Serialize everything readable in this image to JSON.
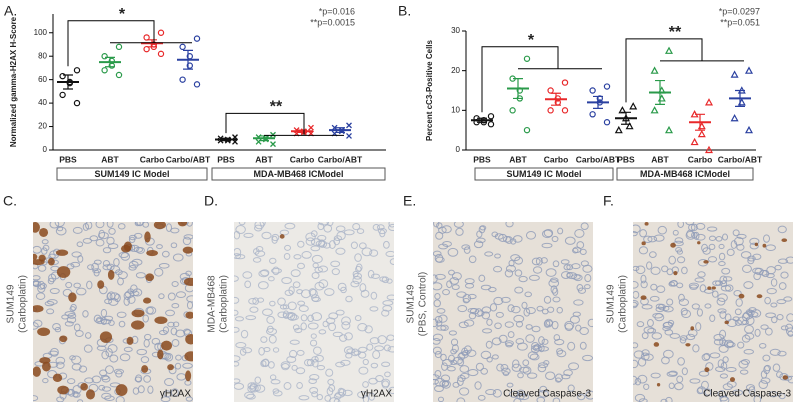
{
  "chart_data": [
    {
      "type": "dot",
      "panel_label": "A.",
      "y_label": "Normalized gamma-H2AX H-Score",
      "ylim": [
        0,
        116
      ],
      "yticks": [
        0,
        20,
        40,
        60,
        80,
        100
      ],
      "colors": [
        "#111111",
        "#2a9a4a",
        "#e8282a",
        "#2a40a0"
      ],
      "significance": [
        "*",
        "**"
      ],
      "p_values": [
        "*p=0.016",
        "**p=0.0015"
      ],
      "groups": [
        {
          "label": "SUM149 IC Model",
          "marker": "circle",
          "categories": [
            "PBS",
            "ABT",
            "Carbo",
            "Carbo/ABT"
          ],
          "points": [
            [
              68,
              63,
              58,
              57,
              47,
              40
            ],
            [
              88,
              80,
              76,
              72,
              68,
              64
            ],
            [
              100,
              96,
              90,
              88,
              86,
              82
            ],
            [
              95,
              88,
              80,
              72,
              60,
              56
            ]
          ],
          "means": [
            58,
            75,
            91,
            77
          ],
          "errors": [
            6,
            4,
            3,
            8
          ]
        },
        {
          "label": "MDA-MB468 ICModel",
          "marker": "x",
          "categories": [
            "PBS",
            "ABT",
            "Carbo",
            "Carbo/ABT"
          ],
          "points": [
            [
              11,
              10,
              9,
              8,
              8,
              7
            ],
            [
              13,
              11,
              10,
              9,
              7,
              5
            ],
            [
              19,
              17,
              16,
              15,
              14,
              14
            ],
            [
              21,
              19,
              17,
              16,
              14,
              12
            ]
          ],
          "means": [
            9,
            10,
            16,
            17
          ],
          "errors": [
            1,
            2,
            1,
            2
          ]
        }
      ]
    },
    {
      "type": "dot",
      "panel_label": "B.",
      "y_label": "Percent cC3-Positive Cells",
      "ylim": [
        0,
        30
      ],
      "yticks": [
        0,
        10,
        20,
        30
      ],
      "colors": [
        "#111111",
        "#2a9a4a",
        "#e8282a",
        "#2a40a0"
      ],
      "significance": [
        "*",
        "**"
      ],
      "p_values": [
        "*p=0.0297",
        "**p=0.051"
      ],
      "groups": [
        {
          "label": "SUM149 IC Model",
          "marker": "circle",
          "categories": [
            "PBS",
            "ABT",
            "Carbo",
            "Carbo/ABT"
          ],
          "points": [
            [
              8.5,
              8,
              7.5,
              7,
              7,
              6.5
            ],
            [
              23,
              18,
              15,
              13,
              10,
              5
            ],
            [
              17,
              15,
              13,
              12,
              10,
              10
            ],
            [
              16,
              15,
              13,
              12,
              9,
              7
            ]
          ],
          "means": [
            7.5,
            15.5,
            12.8,
            12
          ],
          "errors": [
            0.5,
            2.5,
            1.5,
            1.5
          ]
        },
        {
          "label": "MDA-MB468 ICModel",
          "marker": "triangle",
          "categories": [
            "PBS",
            "ABT",
            "Carbo",
            "Carbo/ABT"
          ],
          "points": [
            [
              11,
              10,
              8,
              6,
              5
            ],
            [
              25,
              20,
              15,
              13,
              10,
              5
            ],
            [
              12,
              9,
              6,
              4,
              2,
              0
            ],
            [
              20,
              19,
              15,
              12,
              8,
              5
            ]
          ],
          "means": [
            8,
            14.5,
            7,
            13
          ],
          "errors": [
            1.5,
            3,
            2,
            2
          ]
        }
      ]
    }
  ],
  "panels": [
    {
      "label": "C.",
      "sample": "SUM149",
      "condition": "(Carboplatin)",
      "stain": "γH2AX"
    },
    {
      "label": "D.",
      "sample": "MDA-MB468",
      "condition": "(Carboplatin)",
      "stain": "γH2AX"
    },
    {
      "label": "E.",
      "sample": "SUM149",
      "condition": "(PBS, Control)",
      "stain": "Cleaved Caspase-3"
    },
    {
      "label": "F.",
      "sample": "SUM149",
      "condition": "(Carboplatin)",
      "stain": "Cleaved Caspase-3"
    }
  ]
}
